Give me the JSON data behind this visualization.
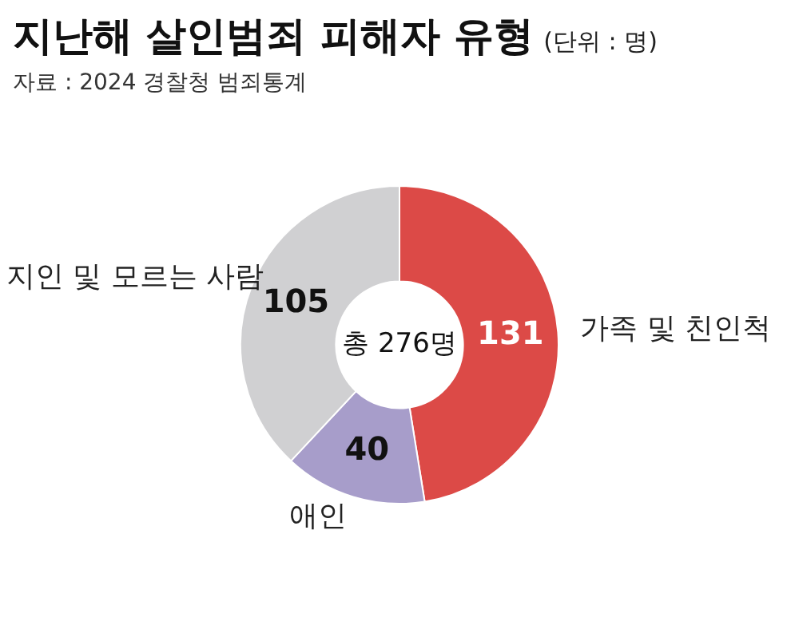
{
  "chart_data": {
    "type": "donut",
    "title": "지난해 살인범죄 피해자 유형",
    "subtitle": "(단위 : 명)",
    "annotations": [
      "자료 : 2024 경찰청 범죄통계",
      "총 276명"
    ],
    "categories": [
      "가족 및 친인척",
      "애인",
      "지인 및 모르는 사람"
    ],
    "values": [
      131,
      40,
      105
    ],
    "colors": [
      "#dc4a47",
      "#a79dca",
      "#d0d0d2"
    ],
    "data_labels": true,
    "legend": false
  }
}
